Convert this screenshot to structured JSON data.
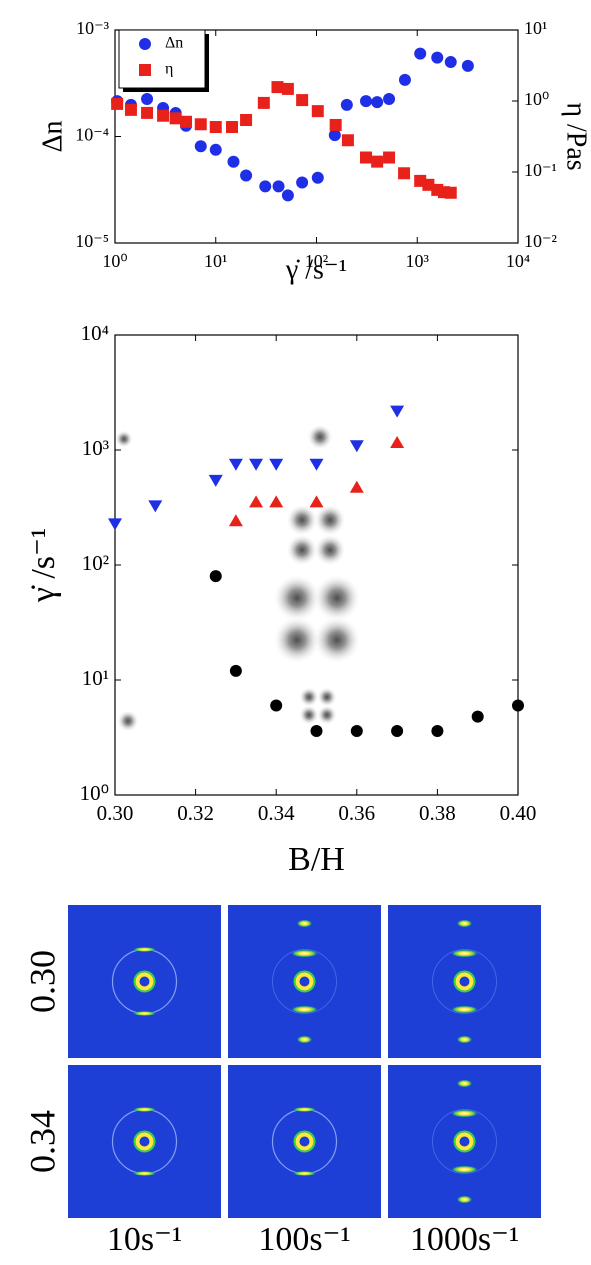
{
  "chart_data": [
    {
      "type": "scatter",
      "xlog": true,
      "ylog": true,
      "y2log": true,
      "xlim": [
        1,
        10000
      ],
      "ylim": [
        1e-05,
        0.001
      ],
      "y2lim": [
        0.01,
        10
      ],
      "xticks": [
        {
          "value": 1,
          "label": "10⁰"
        },
        {
          "value": 10,
          "label": "10¹"
        },
        {
          "value": 100,
          "label": "10²"
        },
        {
          "value": 1000,
          "label": "10³"
        },
        {
          "value": 10000,
          "label": "10⁴"
        }
      ],
      "yticks": [
        {
          "value": 1e-05,
          "label": "10⁻⁵"
        },
        {
          "value": 0.0001,
          "label": "10⁻⁴"
        },
        {
          "value": 0.001,
          "label": "10⁻³"
        }
      ],
      "y2ticks": [
        {
          "value": 0.01,
          "label": "10⁻²"
        },
        {
          "value": 0.1,
          "label": "10⁻¹"
        },
        {
          "value": 1,
          "label": "10⁰"
        },
        {
          "value": 10,
          "label": "10¹"
        }
      ],
      "xlabel": "γ̇ /s⁻¹",
      "ylabel": "Δn",
      "y2label": "η /Pas",
      "legend": "upper left",
      "series": [
        {
          "name": "Δn",
          "color": "#1f2fe6",
          "marker": "circle",
          "x": [
            1.05,
            1.44,
            2.08,
            3.0,
            4.0,
            5.07,
            7.1,
            10,
            15,
            20,
            31,
            42,
            52,
            72,
            103,
            152,
            200,
            310,
            400,
            525,
            755,
            1070,
            1580,
            2150,
            3180
          ],
          "values": [
            0.000215,
            0.000198,
            0.000225,
            0.000185,
            0.000166,
            0.000126,
            8.1e-05,
            7.5e-05,
            5.8e-05,
            4.3e-05,
            3.4e-05,
            3.4e-05,
            2.8e-05,
            3.7e-05,
            4.1e-05,
            0.000103,
            0.000198,
            0.000215,
            0.00021,
            0.000225,
            0.00034,
            0.0006,
            0.00055,
            0.0005,
            0.00046
          ]
        },
        {
          "name": "η",
          "color": "#e8221b",
          "marker": "square",
          "axis": "y2",
          "x": [
            1.05,
            1.44,
            2.08,
            3.0,
            4.0,
            5.07,
            7.1,
            10,
            14.5,
            20,
            30,
            41,
            52,
            72,
            103,
            155,
            205,
            310,
            400,
            525,
            740,
            1070,
            1290,
            1580,
            1840,
            2150
          ],
          "values": [
            0.91,
            0.75,
            0.68,
            0.62,
            0.57,
            0.51,
            0.47,
            0.43,
            0.43,
            0.54,
            0.94,
            1.57,
            1.48,
            1.03,
            0.72,
            0.46,
            0.28,
            0.16,
            0.14,
            0.16,
            0.096,
            0.075,
            0.066,
            0.056,
            0.052,
            0.051
          ]
        }
      ]
    },
    {
      "type": "scatter",
      "ylog": true,
      "xlim": [
        0.3,
        0.4
      ],
      "ylim": [
        1,
        10000
      ],
      "xticks": [
        {
          "value": 0.3,
          "label": "0.30"
        },
        0.32,
        0.34,
        0.36,
        0.38,
        {
          "value": 0.4,
          "label": "0.40"
        }
      ],
      "yticks": [
        {
          "value": 1,
          "label": "10⁰"
        },
        {
          "value": 10,
          "label": "10¹"
        },
        {
          "value": 100,
          "label": "10²"
        },
        {
          "value": 1000,
          "label": "10³"
        },
        {
          "value": 10000,
          "label": "10⁴"
        }
      ],
      "xlabel": "B/H",
      "ylabel": "γ̇ /s⁻¹",
      "series": [
        {
          "color": "#1f2fe6",
          "marker": "triangle-down",
          "x": [
            0.3,
            0.31,
            0.325,
            0.33,
            0.335,
            0.34,
            0.35,
            0.36,
            0.37
          ],
          "values": [
            230,
            330,
            550,
            760,
            760,
            760,
            760,
            1100,
            2200
          ]
        },
        {
          "color": "#e8221b",
          "marker": "triangle-up",
          "x": [
            0.33,
            0.335,
            0.34,
            0.35,
            0.36,
            0.37
          ],
          "values": [
            240,
            350,
            350,
            350,
            470,
            1150
          ]
        },
        {
          "color": "#000000",
          "marker": "circle",
          "x": [
            0.325,
            0.33,
            0.34,
            0.35,
            0.36,
            0.37,
            0.38,
            0.39,
            0.4
          ],
          "values": [
            80,
            12,
            6,
            3.6,
            3.6,
            3.6,
            3.6,
            4.8,
            6
          ]
        }
      ]
    }
  ],
  "patterns": {
    "rows": [
      "0.30",
      "0.34"
    ],
    "columns": [
      "10s⁻¹",
      "100s⁻¹",
      "1000s⁻¹"
    ]
  }
}
